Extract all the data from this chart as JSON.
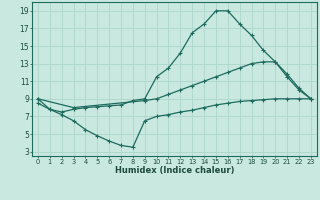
{
  "xlabel": "Humidex (Indice chaleur)",
  "bg_color": "#c8e8e0",
  "grid_color": "#b0d8ce",
  "line_color": "#1e6b5e",
  "xlim": [
    -0.5,
    23.5
  ],
  "ylim": [
    2.5,
    20.0
  ],
  "xticks": [
    0,
    1,
    2,
    3,
    4,
    5,
    6,
    7,
    8,
    9,
    10,
    11,
    12,
    13,
    14,
    15,
    16,
    17,
    18,
    19,
    20,
    21,
    22,
    23
  ],
  "yticks": [
    3,
    5,
    7,
    9,
    11,
    13,
    15,
    17,
    19
  ],
  "curve1_x": [
    0,
    1,
    2,
    3,
    4,
    5,
    6,
    7,
    8,
    9,
    10,
    11,
    12,
    13,
    14,
    15,
    16,
    17,
    18,
    19,
    20,
    21,
    22,
    23
  ],
  "curve1_y": [
    9.0,
    7.8,
    7.5,
    7.8,
    8.0,
    8.1,
    8.2,
    8.3,
    8.8,
    9.0,
    11.5,
    12.5,
    14.2,
    16.5,
    17.5,
    19.0,
    19.0,
    17.5,
    16.2,
    14.5,
    13.2,
    11.5,
    10.0,
    9.0
  ],
  "curve2_x": [
    0,
    3,
    9,
    10,
    11,
    12,
    13,
    14,
    15,
    16,
    17,
    18,
    19,
    20,
    21,
    22,
    23
  ],
  "curve2_y": [
    9.0,
    8.0,
    8.8,
    9.0,
    9.5,
    10.0,
    10.5,
    11.0,
    11.5,
    12.0,
    12.5,
    13.0,
    13.2,
    13.2,
    11.8,
    10.2,
    9.0
  ],
  "curve3_x": [
    0,
    1,
    2,
    3,
    4,
    5,
    6,
    7,
    8,
    9,
    10,
    11,
    12,
    13,
    14,
    15,
    16,
    17,
    18,
    19,
    20,
    21,
    22,
    23
  ],
  "curve3_y": [
    8.5,
    7.8,
    7.2,
    6.5,
    5.5,
    4.8,
    4.2,
    3.7,
    3.5,
    6.5,
    7.0,
    7.2,
    7.5,
    7.7,
    8.0,
    8.3,
    8.5,
    8.7,
    8.8,
    8.9,
    9.0,
    9.0,
    9.0,
    9.0
  ]
}
